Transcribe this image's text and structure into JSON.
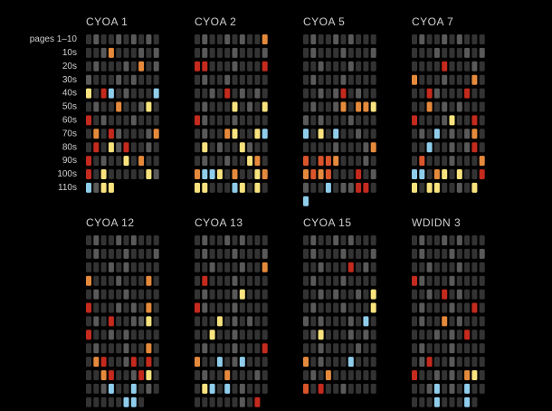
{
  "chart_data": {
    "type": "cell-grid",
    "row_labels": [
      "pages 1–10",
      "10s",
      "20s",
      "30s",
      "40s",
      "50s",
      "60s",
      "70s",
      "80s",
      "90s",
      "100s",
      "110s"
    ],
    "palette": {
      "d": "#333333",
      "g": "#595959",
      "o": "#e58a3c",
      "n": "#d9552b",
      "r": "#c42a1d",
      "y": "#f8e37f",
      "b": "#8fcdeb"
    },
    "panels": [
      {
        "title": "CYOA 1",
        "rows": [
          "dgddgdgdgd",
          "ddgodddgdg",
          "dgdddgdodg",
          "gdddgdgddd",
          "ydrbdgdddb",
          "dgddoddgyd",
          "rdgdddgddd",
          "dodrgdddgo",
          "drdygrddgd",
          "rdgddydodd",
          "rdydddddyg",
          "bgyy......"
        ]
      },
      {
        "title": "CYOA 2",
        "rows": [
          "dgddgdgddo",
          "dgdddgdddg",
          "rrdddgdddr",
          "dgddgddddd",
          "ddgdrdgdgd",
          "dgdddydgdy",
          "rgdddgdddd",
          "dgddoyddyb",
          "dydgddygdd",
          "dgddgddyod",
          "obbydoddyo",
          "yydddbydyd"
        ]
      },
      {
        "title": "CYOA 5",
        "rows": [
          "dgddgdgddd",
          "dgdddgdddg",
          "ddgdddgddd",
          "dgdddgdddd",
          "ddgdgrdgdd",
          "dgddgodooy",
          "gdgdddgddd",
          "bdydbddgdd",
          "ddddgdddgo",
          "ndnnodddgd",
          "onondddrdg",
          "gddbdggrrd",
          "b........."
        ]
      },
      {
        "title": "CYOA 7",
        "rows": [
          "dgddgdgddd",
          "dddgdddgdg",
          "ddddrdddgd",
          "odddgdddod",
          "ddrgdddrdd",
          "ddodgdgddd",
          "rdddgyddrd",
          "dgdbdgdgod",
          "ddbddgdgrd",
          "dndddgdddo",
          "bbdoydyddr",
          "ydyyddgdy."
        ]
      },
      {
        "title": "CYOA 12",
        "rows": [
          "dgddgdgddd",
          "dgdddgdddg",
          "dddgdgdddd",
          "odddgdddod",
          "dgdddgdddd",
          "rdddgdgdod",
          "dgdrddggyd",
          "rddgdgdddd",
          "dgdddgddod",
          "dorddgrdrd",
          "ddorddgryd",
          "ddgbddbdgd",
          "dddddbbd.."
        ]
      },
      {
        "title": "CYOA 13",
        "rows": [
          "dgddgdgddd",
          "dgdddgdddg",
          "ddgdddgddo",
          "drdddgdddd",
          "dgdddgyddd",
          "rgdddgdddd",
          "dddydgdgdd",
          "ddyddgdddd",
          "dgdddgdddr",
          "oddbdgbddd",
          "dgddodddgd",
          "dybdbdgddd",
          "ddddddgdr."
        ]
      },
      {
        "title": "CYOA 15",
        "rows": [
          "dgddgdgddd",
          "dgdddgdddg",
          "ddgdddrdgd",
          "dgdddgdddd",
          "ddgdgddgdy",
          "dgdddgdddy",
          "gdgdddgdbd",
          "dgydddgdgd",
          "ddgddddgdd",
          "odgdddbddd",
          "dgdodddddd",
          "ndrddgdddd"
        ]
      },
      {
        "title": "WDIDN 3",
        "rows": [
          "dgddgdgddd",
          "dgdddgdddg",
          "ddgdddgddd",
          "rgdddgdddd",
          "ddgdrdgddd",
          "dgdddgddrd",
          "dgddodgddd",
          "dddgdgdrdd",
          "dgdddgdddd",
          "dgrddgdddd",
          "rddgdgdoyd",
          "ddgbdgdbdd",
          "dddbdddbd."
        ]
      }
    ]
  }
}
